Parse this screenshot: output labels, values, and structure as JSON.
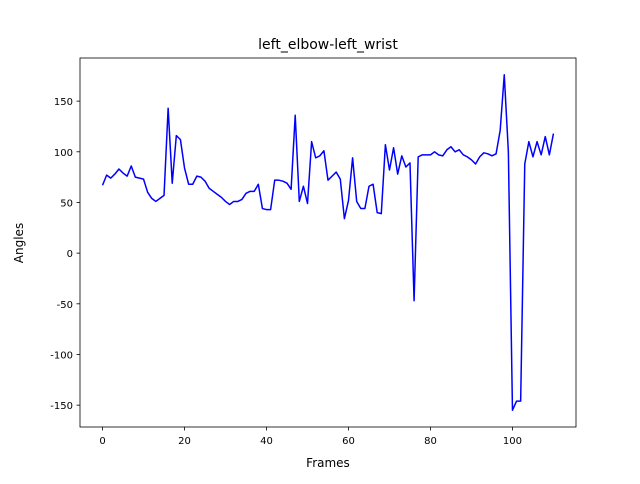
{
  "chart_data": {
    "type": "line",
    "title": "left_elbow-left_wrist",
    "x_label": "Frames",
    "y_label": "Angles",
    "x": [
      0,
      1,
      2,
      3,
      4,
      5,
      6,
      7,
      8,
      9,
      10,
      11,
      12,
      13,
      14,
      15,
      16,
      17,
      18,
      19,
      20,
      21,
      22,
      23,
      24,
      25,
      26,
      27,
      28,
      29,
      30,
      31,
      32,
      33,
      34,
      35,
      36,
      37,
      38,
      39,
      40,
      41,
      42,
      43,
      44,
      45,
      46,
      47,
      48,
      49,
      50,
      51,
      52,
      53,
      54,
      55,
      56,
      57,
      58,
      59,
      60,
      61,
      62,
      63,
      64,
      65,
      66,
      67,
      68,
      69,
      70,
      71,
      72,
      73,
      74,
      75,
      76,
      77,
      78,
      79,
      80,
      81,
      82,
      83,
      84,
      85,
      86,
      87,
      88,
      89,
      90,
      91,
      92,
      93,
      94,
      95,
      96,
      97,
      98,
      99,
      100,
      101,
      102,
      103,
      104,
      105,
      106,
      107,
      108,
      109,
      110
    ],
    "series": [
      {
        "name": "left_elbow-left_wrist",
        "color": "#0000ff",
        "values": [
          67,
          77,
          74,
          78,
          83,
          79,
          76,
          86,
          75,
          74,
          73,
          60,
          54,
          51,
          54,
          57,
          143,
          69,
          116,
          112,
          84,
          68,
          68,
          76,
          75,
          71,
          64,
          61,
          58,
          55,
          51,
          48,
          51,
          51,
          53,
          59,
          61,
          61,
          68,
          44,
          43,
          43,
          72,
          72,
          71,
          69,
          63,
          136,
          51,
          66,
          49,
          110,
          94,
          96,
          101,
          72,
          76,
          80,
          73,
          34,
          52,
          94,
          51,
          44,
          44,
          66,
          68,
          40,
          39,
          107,
          82,
          104,
          78,
          96,
          85,
          89,
          -47,
          95,
          97,
          97,
          97,
          100,
          97,
          96,
          102,
          105,
          100,
          102,
          97,
          95,
          92,
          88,
          95,
          99,
          98,
          96,
          98,
          121,
          176,
          100,
          -155,
          -146,
          -146,
          88,
          110,
          95,
          110,
          97,
          115,
          97,
          118
        ]
      }
    ],
    "xlim": [
      -5.5,
      115.5
    ],
    "xticks": [
      0,
      20,
      40,
      60,
      80,
      100
    ],
    "ylim": [
      -171.55,
      192.55
    ],
    "yticks": [
      -150,
      -100,
      -50,
      0,
      50,
      100,
      150
    ]
  }
}
